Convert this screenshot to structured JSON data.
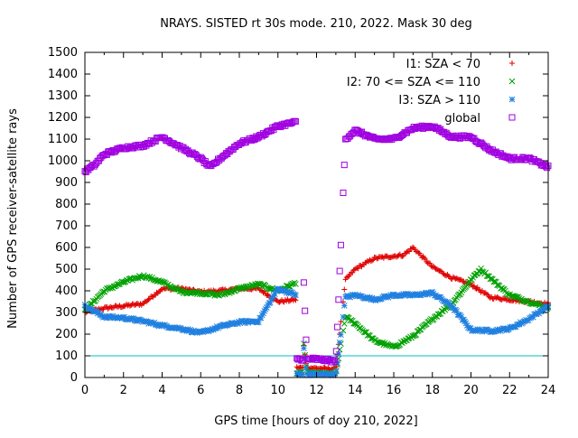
{
  "chart_data": {
    "type": "scatter",
    "title": "NRAYS. SISTED rt 30s mode. 210, 2022. Mask 30 deg",
    "xlabel": "GPS time [hours of doy 210, 2022]",
    "ylabel": "Number of GPS receiver-satellite rays",
    "xlim": [
      0,
      24
    ],
    "ylim": [
      0,
      1500
    ],
    "xticks": [
      "0",
      "2",
      "4",
      "6",
      "8",
      "10",
      "12",
      "14",
      "16",
      "18",
      "20",
      "22",
      "24"
    ],
    "yticks": [
      "0",
      "100",
      "200",
      "300",
      "400",
      "500",
      "600",
      "700",
      "800",
      "900",
      "1000",
      "1100",
      "1200",
      "1300",
      "1400",
      "1500"
    ],
    "legend_position": "top-right",
    "reference_line": {
      "y": 100,
      "color": "#00c0c0"
    },
    "series": [
      {
        "name": "I1: SZA < 70",
        "color": "#e00000",
        "marker": "+",
        "x": [
          0,
          1,
          2,
          3,
          4,
          5,
          6,
          7,
          8,
          9,
          10,
          11,
          11.5,
          12,
          12.5,
          13,
          13.5,
          14,
          15,
          16,
          16.5,
          17,
          18,
          19,
          20,
          21,
          22,
          23,
          24
        ],
        "y": [
          300,
          320,
          330,
          340,
          410,
          410,
          395,
          400,
          410,
          410,
          350,
          360,
          45,
          42,
          40,
          40,
          450,
          500,
          550,
          560,
          565,
          600,
          510,
          460,
          430,
          370,
          360,
          350,
          340
        ]
      },
      {
        "name": "I2: 70 <= SZA <= 110",
        "color": "#00a000",
        "marker": "x",
        "x": [
          0,
          1,
          2,
          3,
          4,
          5,
          6,
          7,
          8,
          9,
          10,
          11,
          11.5,
          12,
          12.5,
          13,
          13.5,
          14,
          15,
          16,
          17,
          18,
          19,
          20,
          20.5,
          21,
          22,
          23,
          24
        ],
        "y": [
          310,
          400,
          440,
          470,
          440,
          395,
          390,
          380,
          410,
          430,
          400,
          440,
          20,
          20,
          18,
          18,
          280,
          250,
          170,
          140,
          190,
          270,
          340,
          450,
          500,
          460,
          380,
          350,
          320
        ]
      },
      {
        "name": "I3: SZA > 110",
        "color": "#2080e0",
        "marker": "*",
        "x": [
          0,
          1,
          2,
          3,
          4,
          5,
          6,
          7,
          8,
          9,
          10,
          11,
          11.5,
          12,
          12.5,
          13,
          13.5,
          14,
          15,
          16,
          17,
          18,
          19,
          20,
          21,
          22,
          23,
          24
        ],
        "y": [
          330,
          280,
          275,
          260,
          240,
          225,
          205,
          235,
          255,
          260,
          410,
          380,
          15,
          15,
          14,
          14,
          370,
          380,
          360,
          380,
          380,
          390,
          330,
          220,
          215,
          225,
          270,
          330
        ]
      },
      {
        "name": "global",
        "color": "#a000e0",
        "marker": "square",
        "x": [
          0,
          0.5,
          1,
          2,
          3,
          4,
          5,
          6,
          6.5,
          7,
          8,
          9,
          10,
          11,
          11.5,
          12,
          12.5,
          13,
          13.5,
          14,
          15,
          16,
          17,
          18,
          19,
          20,
          21,
          22,
          23,
          24
        ],
        "y": [
          950,
          980,
          1030,
          1060,
          1070,
          1110,
          1060,
          1010,
          970,
          1010,
          1080,
          1110,
          1160,
          1180,
          85,
          85,
          80,
          75,
          1100,
          1140,
          1100,
          1100,
          1150,
          1160,
          1110,
          1110,
          1050,
          1010,
          1010,
          970
        ]
      }
    ]
  }
}
